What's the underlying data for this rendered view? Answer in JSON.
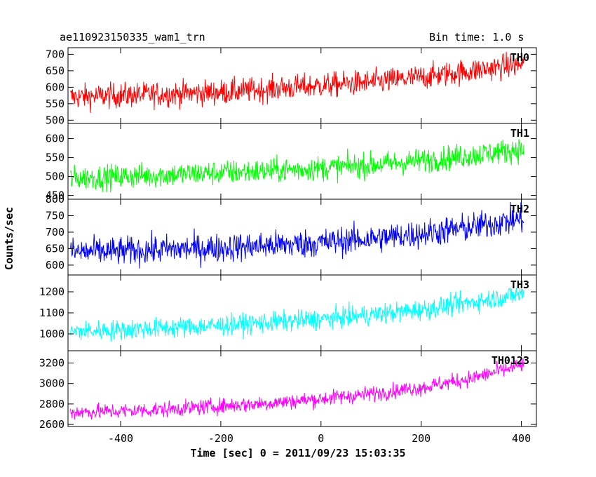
{
  "header": {
    "title": "ae110923150335_wam1_trn",
    "bin_time": "Bin time: 1.0 s"
  },
  "chart_data": {
    "type": "line",
    "title": "ae110923150335_wam1_trn",
    "subtitle": "Bin time: 1.0 s",
    "xlabel": "Time [sec] 0 = 2011/09/23 15:03:35",
    "ylabel": "Counts/sec",
    "xlim": [
      -505,
      430
    ],
    "xticks": [
      -400,
      -200,
      0,
      200,
      400
    ],
    "grid": false,
    "panels": [
      {
        "name": "TH0",
        "color": "#ff0000",
        "ylim": [
          490,
          720
        ],
        "yticks": [
          500,
          550,
          600,
          650,
          700
        ],
        "x": [
          -500,
          -400,
          -300,
          -200,
          -100,
          0,
          100,
          200,
          300,
          400
        ],
        "y": [
          570,
          575,
          580,
          585,
          595,
          605,
          615,
          630,
          650,
          670
        ],
        "noise": 35
      },
      {
        "name": "TH1",
        "color": "#00ff00",
        "ylim": [
          440,
          640
        ],
        "yticks": [
          450,
          500,
          550,
          600
        ],
        "x": [
          -500,
          -400,
          -300,
          -200,
          -100,
          0,
          100,
          200,
          300,
          400
        ],
        "y": [
          495,
          500,
          505,
          510,
          515,
          522,
          530,
          542,
          556,
          572
        ],
        "noise": 30
      },
      {
        "name": "TH2",
        "color": "#0000ff",
        "ylim": [
          570,
          800
        ],
        "yticks": [
          600,
          650,
          700,
          750,
          800
        ],
        "x": [
          -500,
          -400,
          -300,
          -200,
          -100,
          0,
          100,
          200,
          300,
          400
        ],
        "y": [
          640,
          642,
          648,
          652,
          660,
          668,
          680,
          695,
          715,
          740
        ],
        "noise": 40
      },
      {
        "name": "TH3",
        "color": "#00ffff",
        "ylim": [
          920,
          1280
        ],
        "yticks": [
          1000,
          1100,
          1200
        ],
        "x": [
          -500,
          -400,
          -300,
          -200,
          -100,
          0,
          100,
          200,
          300,
          400
        ],
        "y": [
          1010,
          1020,
          1030,
          1040,
          1055,
          1070,
          1090,
          1115,
          1150,
          1190
        ],
        "noise": 45
      },
      {
        "name": "TH0123",
        "color": "#ff00ff",
        "ylim": [
          2580,
          3320
        ],
        "yticks": [
          2600,
          2800,
          3000,
          3200
        ],
        "x": [
          -500,
          -400,
          -300,
          -200,
          -100,
          0,
          100,
          200,
          300,
          400
        ],
        "y": [
          2720,
          2730,
          2750,
          2780,
          2810,
          2850,
          2900,
          2960,
          3050,
          3180
        ],
        "noise": 70
      }
    ]
  }
}
